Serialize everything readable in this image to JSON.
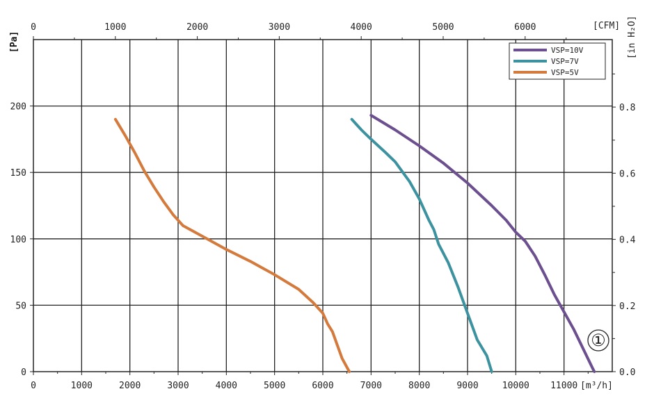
{
  "chart_data": {
    "type": "line",
    "curve_id": "①",
    "x_axis_bottom": {
      "unit_label": "[m³/h]",
      "range": [
        0,
        12000
      ],
      "ticks": [
        0,
        1000,
        2000,
        3000,
        4000,
        5000,
        6000,
        7000,
        8000,
        9000,
        10000,
        11000
      ]
    },
    "x_axis_top": {
      "unit_label": "[CFM]",
      "range": [
        0,
        7063
      ],
      "ticks": [
        0,
        1000,
        2000,
        3000,
        4000,
        5000,
        6000
      ]
    },
    "y_axis_left": {
      "unit_label": "[Pa]",
      "range": [
        0,
        250
      ],
      "ticks": [
        0,
        50,
        100,
        150,
        200
      ]
    },
    "y_axis_right": {
      "unit_label": "[in H₂O]",
      "range": [
        0,
        1.004
      ],
      "ticks": [
        0.0,
        0.2,
        0.4,
        0.6,
        0.8
      ],
      "tick_labels": [
        "0.0",
        "0.2",
        "0.4",
        "0.6",
        "0.8"
      ]
    },
    "grid": true,
    "legend_position": "top-right",
    "colors": {
      "vsp10": "#6b4f8e",
      "vsp7": "#3d92a0",
      "vsp5": "#d47a3c"
    },
    "series": [
      {
        "name": "VSP=10V",
        "color_key": "vsp10",
        "points": [
          [
            7000,
            193
          ],
          [
            7500,
            182
          ],
          [
            8000,
            170
          ],
          [
            8500,
            157
          ],
          [
            9000,
            142
          ],
          [
            9500,
            125
          ],
          [
            9800,
            114
          ],
          [
            10000,
            105
          ],
          [
            10200,
            98
          ],
          [
            10400,
            87
          ],
          [
            10600,
            73
          ],
          [
            10800,
            58
          ],
          [
            11000,
            45
          ],
          [
            11200,
            32
          ],
          [
            11400,
            17
          ],
          [
            11600,
            2
          ],
          [
            11630,
            0
          ]
        ]
      },
      {
        "name": "VSP=7V",
        "color_key": "vsp7",
        "points": [
          [
            6600,
            190
          ],
          [
            6800,
            182
          ],
          [
            7000,
            175
          ],
          [
            7300,
            165
          ],
          [
            7500,
            158
          ],
          [
            7800,
            143
          ],
          [
            8000,
            130
          ],
          [
            8200,
            114
          ],
          [
            8300,
            107
          ],
          [
            8400,
            96
          ],
          [
            8600,
            82
          ],
          [
            8800,
            64
          ],
          [
            9000,
            44
          ],
          [
            9200,
            24
          ],
          [
            9400,
            12
          ],
          [
            9500,
            0
          ]
        ]
      },
      {
        "name": "VSP=5V",
        "color_key": "vsp5",
        "points": [
          [
            1700,
            190
          ],
          [
            1900,
            178
          ],
          [
            2100,
            165
          ],
          [
            2300,
            151
          ],
          [
            2500,
            139
          ],
          [
            2700,
            128
          ],
          [
            2900,
            118
          ],
          [
            3100,
            110
          ],
          [
            3500,
            102
          ],
          [
            4000,
            92
          ],
          [
            4500,
            83
          ],
          [
            5000,
            73
          ],
          [
            5500,
            62
          ],
          [
            5800,
            52
          ],
          [
            6000,
            44
          ],
          [
            6100,
            36
          ],
          [
            6200,
            30
          ],
          [
            6300,
            20
          ],
          [
            6400,
            10
          ],
          [
            6550,
            0
          ]
        ]
      }
    ]
  }
}
